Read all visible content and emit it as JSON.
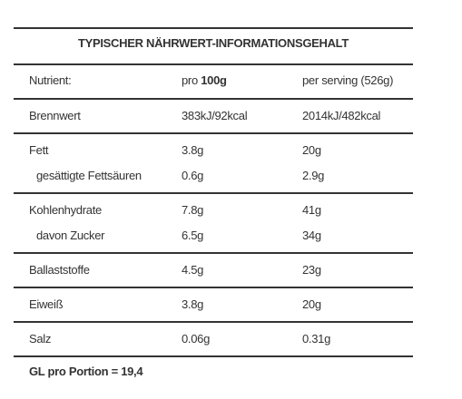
{
  "table": {
    "title": "TYPISCHER NÄHRWERT-INFORMATIONSGEHALT",
    "header": {
      "nutrient": "Nutrient:",
      "per100_prefix": "pro",
      "per100_amount": "100g",
      "serving": "per serving (526g)"
    },
    "groups": [
      [
        [
          "Brennwert",
          "383kJ/92kcal",
          "2014kJ/482kcal"
        ]
      ],
      [
        [
          "Fett",
          "3.8g",
          "20g"
        ],
        [
          "gesättigte Fettsäuren",
          "0.6g",
          "2.9g"
        ]
      ],
      [
        [
          "Kohlenhydrate",
          "7.8g",
          "41g"
        ],
        [
          "davon Zucker",
          "6.5g",
          "34g"
        ]
      ],
      [
        [
          "Ballaststoffe",
          "4.5g",
          "23g"
        ]
      ],
      [
        [
          "Eiweiß",
          "3.8g",
          "20g"
        ]
      ],
      [
        [
          "Salz",
          "0.06g",
          "0.31g"
        ]
      ]
    ],
    "footer": "GL pro Portion = 19,4"
  }
}
